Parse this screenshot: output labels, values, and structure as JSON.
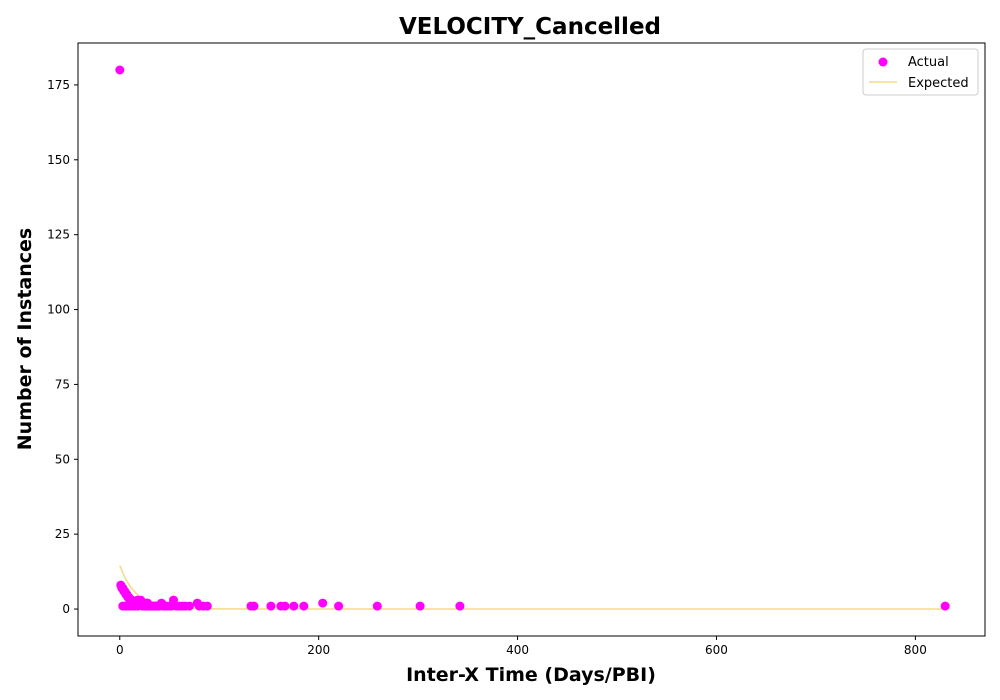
{
  "chart_data": {
    "type": "scatter",
    "title": "VELOCITY_Cancelled",
    "xlabel": "Inter-X Time (Days/PBI)",
    "ylabel": "Number of Instances",
    "xlim": [
      -42,
      870
    ],
    "ylim": [
      -9,
      189
    ],
    "xticks": [
      0,
      200,
      400,
      600,
      800
    ],
    "yticks": [
      0,
      25,
      50,
      75,
      100,
      125,
      150,
      175
    ],
    "grid": false,
    "legend_position": "top-right",
    "colors": {
      "actual": "#ff00ff",
      "expected": "#f5dc8c"
    },
    "series": [
      {
        "name": "Actual",
        "kind": "scatter",
        "color": "#ff00ff",
        "points": [
          [
            0,
            180
          ],
          [
            1,
            8
          ],
          [
            2,
            7
          ],
          [
            3,
            7
          ],
          [
            4,
            6
          ],
          [
            5,
            6
          ],
          [
            6,
            5
          ],
          [
            7,
            5
          ],
          [
            8,
            4
          ],
          [
            9,
            4
          ],
          [
            10,
            3
          ],
          [
            11,
            3
          ],
          [
            12,
            3
          ],
          [
            13,
            2
          ],
          [
            14,
            2
          ],
          [
            15,
            2
          ],
          [
            16,
            2
          ],
          [
            17,
            2
          ],
          [
            18,
            1
          ],
          [
            19,
            2
          ],
          [
            20,
            2
          ],
          [
            21,
            3
          ],
          [
            22,
            2
          ],
          [
            23,
            1
          ],
          [
            24,
            2
          ],
          [
            25,
            1
          ],
          [
            26,
            1
          ],
          [
            27,
            2
          ],
          [
            28,
            1
          ],
          [
            29,
            1
          ],
          [
            30,
            1
          ],
          [
            31,
            1
          ],
          [
            32,
            1
          ],
          [
            33,
            1
          ],
          [
            34,
            1
          ],
          [
            35,
            1
          ],
          [
            36,
            1
          ],
          [
            37,
            1
          ],
          [
            38,
            1
          ],
          [
            40,
            1
          ],
          [
            42,
            2
          ],
          [
            44,
            1
          ],
          [
            45,
            1
          ],
          [
            47,
            1
          ],
          [
            50,
            1
          ],
          [
            52,
            1
          ],
          [
            54,
            3
          ],
          [
            57,
            1
          ],
          [
            60,
            1
          ],
          [
            63,
            1
          ],
          [
            66,
            1
          ],
          [
            70,
            1
          ],
          [
            78,
            2
          ],
          [
            80,
            1
          ],
          [
            84,
            1
          ],
          [
            88,
            1
          ],
          [
            132,
            1
          ],
          [
            135,
            1
          ],
          [
            152,
            1
          ],
          [
            162,
            1
          ],
          [
            166,
            1
          ],
          [
            175,
            1
          ],
          [
            185,
            1
          ],
          [
            204,
            2
          ],
          [
            220,
            1
          ],
          [
            259,
            1
          ],
          [
            302,
            1
          ],
          [
            342,
            1
          ],
          [
            830,
            1
          ],
          [
            3,
            1
          ],
          [
            6,
            1
          ],
          [
            9,
            1
          ],
          [
            12,
            1
          ],
          [
            15,
            1
          ],
          [
            18,
            3
          ],
          [
            24,
            1
          ],
          [
            28,
            2
          ]
        ]
      },
      {
        "name": "Expected",
        "kind": "line",
        "color": "#f5dc8c",
        "x": [
          0,
          5,
          10,
          15,
          20,
          25,
          30,
          40,
          50,
          60,
          80,
          100,
          150,
          200,
          300,
          400,
          500,
          600,
          700,
          830
        ],
        "values": [
          14.5,
          10.6,
          7.8,
          5.7,
          4.2,
          3.1,
          2.3,
          1.2,
          0.7,
          0.4,
          0.1,
          0.05,
          0,
          0,
          0,
          0,
          0,
          0,
          0,
          0
        ]
      }
    ]
  }
}
